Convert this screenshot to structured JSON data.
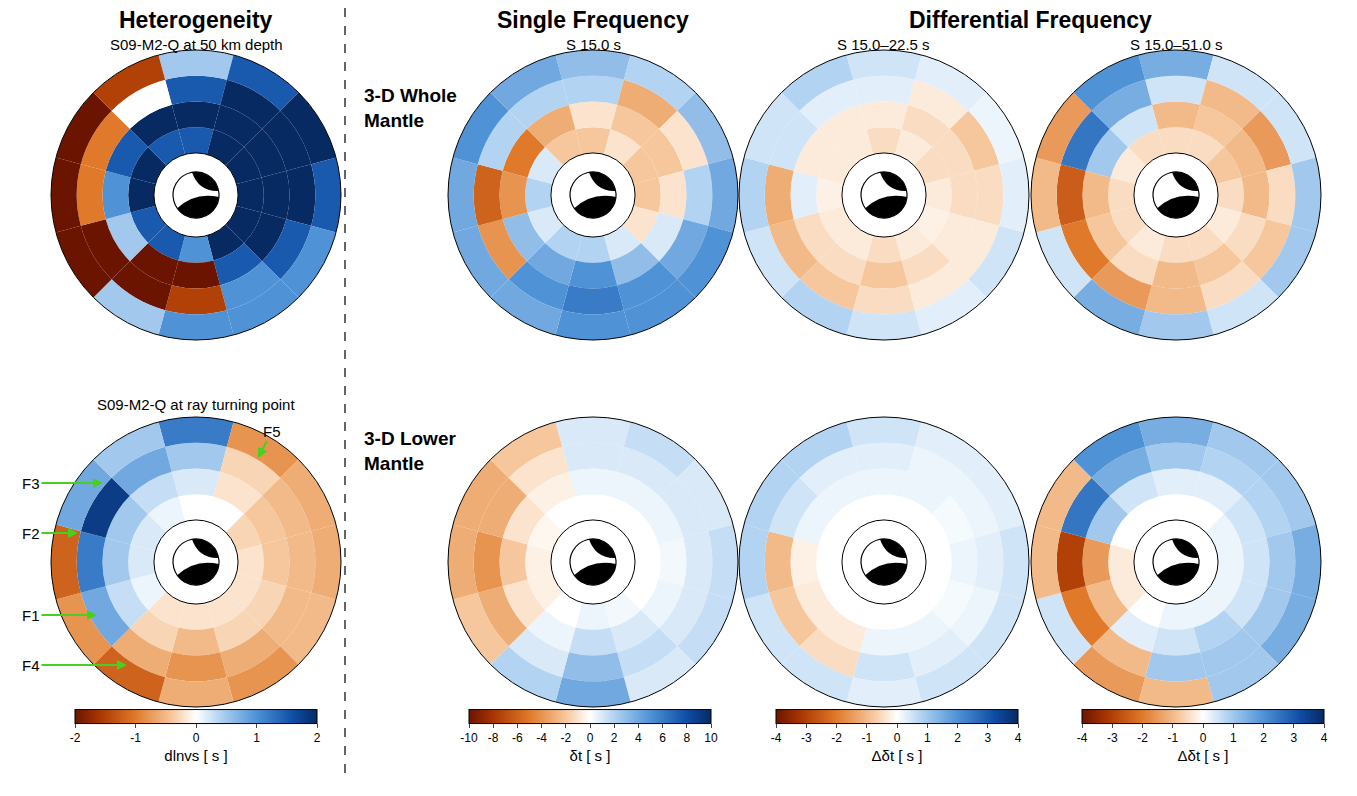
{
  "section_titles": [
    "Heterogeneity",
    "Single Frequency",
    "Differential Frequency"
  ],
  "row_labels": [
    "3-D Whole Mantle",
    "3-D Lower Mantle"
  ],
  "colorbars": [
    {
      "title": "dlnvs [ s ]",
      "range": [
        -2,
        2
      ],
      "ticks": [
        -2,
        -1,
        0,
        1,
        2
      ]
    },
    {
      "title": "δt [ s ]",
      "range": [
        -10,
        10
      ],
      "ticks": [
        -10,
        -8,
        -6,
        -4,
        -2,
        0,
        2,
        4,
        6,
        8,
        10
      ]
    },
    {
      "title": "Δδt [ s ]",
      "range": [
        -4,
        4
      ],
      "ticks": [
        -4,
        -3,
        -2,
        -1,
        0,
        1,
        2,
        3,
        4
      ]
    },
    {
      "title": "Δδt [ s ]",
      "range": [
        -4,
        4
      ],
      "ticks": [
        -4,
        -3,
        -2,
        -1,
        0,
        1,
        2,
        3,
        4
      ]
    }
  ],
  "chart_data": [
    {
      "type": "polar_heatmap",
      "title": "S09-M2-Q at 50 km depth",
      "colorbar": 0,
      "cells": [
        [
          1.5,
          2,
          1.5,
          0.5
        ],
        [
          2,
          2,
          2,
          1.5
        ],
        [
          2,
          2,
          2,
          2
        ],
        [
          2,
          2,
          2,
          1.5
        ],
        [
          2,
          2,
          1.5,
          1
        ],
        [
          2,
          1.5,
          1,
          1
        ],
        [
          1,
          -2,
          -1.5,
          1
        ],
        [
          1.5,
          -2,
          -2,
          0.5
        ],
        [
          1.5,
          0.5,
          -2,
          -2
        ],
        [
          2,
          1,
          -1,
          -2
        ],
        [
          2,
          1.5,
          -1,
          -2
        ],
        [
          1.5,
          2,
          0,
          -1.5
        ]
      ]
    },
    {
      "type": "polar_heatmap",
      "title": "S09-M2-Q at ray turning point",
      "colorbar": 0,
      "annotations": [
        "F3",
        "F2",
        "F1",
        "F4",
        "F5"
      ],
      "cells": [
        [
          0,
          0.2,
          0.5,
          1.2
        ],
        [
          0,
          -0.2,
          -0.3,
          -0.8
        ],
        [
          -0.3,
          -0.4,
          -0.5,
          -0.6
        ],
        [
          -0.2,
          -0.4,
          -0.5,
          -0.6
        ],
        [
          -0.2,
          -0.3,
          -0.5,
          -0.5
        ],
        [
          -0.2,
          -0.3,
          -0.6,
          -0.8
        ],
        [
          -0.2,
          -0.5,
          -0.8,
          -0.6
        ],
        [
          -0.2,
          -0.3,
          -0.6,
          -1.2
        ],
        [
          0.1,
          0.3,
          0.8,
          -0.8
        ],
        [
          0.2,
          0.5,
          1.2,
          -1.2
        ],
        [
          0.2,
          0.5,
          1.8,
          0.8
        ],
        [
          0.1,
          0.3,
          0.8,
          0.5
        ]
      ]
    },
    {
      "type": "polar_heatmap",
      "title": "S 15.0 s",
      "colorbar": 1,
      "cells": [
        [
          -2,
          -1,
          2,
          3
        ],
        [
          -1,
          -2,
          -3,
          2
        ],
        [
          -2,
          -2,
          -1,
          3
        ],
        [
          -2,
          -1,
          2,
          4
        ],
        [
          -1,
          1,
          4,
          5
        ],
        [
          1,
          3,
          5,
          5
        ],
        [
          2,
          5,
          6,
          5
        ],
        [
          2,
          4,
          5,
          4
        ],
        [
          1,
          3,
          -4,
          4
        ],
        [
          2,
          -4,
          -6,
          4
        ],
        [
          1,
          -5,
          2,
          5
        ],
        [
          -2,
          -3,
          2,
          4
        ]
      ]
    },
    {
      "type": "polar_heatmap",
      "title": "S 15.0–22.5 s",
      "colorbar": 2,
      "cells": [
        [
          -0.5,
          -0.3,
          0.3,
          0.5
        ],
        [
          -0.3,
          -0.5,
          -0.3,
          0.3
        ],
        [
          -0.5,
          -0.5,
          -0.8,
          0.2
        ],
        [
          -0.3,
          -0.5,
          -0.5,
          0.3
        ],
        [
          -0.2,
          -0.3,
          -0.3,
          0.5
        ],
        [
          -0.3,
          -0.5,
          -0.3,
          0.3
        ],
        [
          -0.5,
          -0.8,
          -0.5,
          0.5
        ],
        [
          -0.3,
          -0.5,
          -0.8,
          0.8
        ],
        [
          -0.3,
          -0.5,
          -1,
          0.5
        ],
        [
          -0.2,
          0.3,
          -1.2,
          0.8
        ],
        [
          -0.3,
          -0.3,
          0.5,
          0.5
        ],
        [
          -0.3,
          -0.3,
          0.3,
          0.8
        ]
      ]
    },
    {
      "type": "polar_heatmap",
      "title": "S 15.0–51.0 s",
      "colorbar": 3,
      "cells": [
        [
          -0.5,
          -1,
          0.5,
          1.5
        ],
        [
          -0.5,
          -0.8,
          -1,
          0.5
        ],
        [
          -0.8,
          -1,
          -1.5,
          0.5
        ],
        [
          -0.5,
          -1,
          -0.5,
          1
        ],
        [
          -0.3,
          -0.5,
          -0.8,
          1
        ],
        [
          -0.5,
          -0.8,
          -0.5,
          0.5
        ],
        [
          -0.5,
          -1,
          -1,
          1
        ],
        [
          -0.3,
          -0.5,
          -1.5,
          1.5
        ],
        [
          -0.5,
          -0.8,
          -2,
          0.5
        ],
        [
          -0.5,
          -1,
          -2.5,
          -1
        ],
        [
          -0.3,
          1,
          2.5,
          -1.5
        ],
        [
          -0.5,
          0.5,
          1.5,
          2
        ]
      ]
    },
    {
      "type": "polar_heatmap",
      "colorbar": 1,
      "cells": [
        [
          0,
          0.5,
          1,
          1
        ],
        [
          0,
          0.5,
          1,
          1.5
        ],
        [
          0,
          0.5,
          1,
          1
        ],
        [
          0,
          0.3,
          1,
          1.5
        ],
        [
          0,
          0.5,
          1,
          1.5
        ],
        [
          0.3,
          1,
          1.5,
          1
        ],
        [
          0.5,
          1.5,
          3,
          4
        ],
        [
          0,
          0.5,
          1,
          2
        ],
        [
          -0.5,
          -1,
          -3,
          -2
        ],
        [
          -0.5,
          -2,
          -4,
          -3
        ],
        [
          -0.3,
          -1,
          -3,
          -3
        ],
        [
          0,
          -0.5,
          -1,
          -2
        ]
      ]
    },
    {
      "type": "polar_heatmap",
      "colorbar": 2,
      "cells": [
        [
          0,
          0.2,
          0.3,
          0.5
        ],
        [
          0,
          0.2,
          0.2,
          0.3
        ],
        [
          0,
          0.1,
          0.2,
          0.3
        ],
        [
          0,
          0.2,
          0.3,
          0.5
        ],
        [
          0,
          0.1,
          0.2,
          0.5
        ],
        [
          0,
          0.2,
          0.3,
          0.5
        ],
        [
          0,
          0.2,
          0.5,
          0.3
        ],
        [
          0,
          -0.3,
          -0.5,
          0.5
        ],
        [
          0,
          -0.3,
          -0.8,
          0.5
        ],
        [
          0,
          -0.2,
          -1,
          0.8
        ],
        [
          0,
          0.2,
          0.5,
          0.8
        ],
        [
          0,
          0.2,
          0.3,
          0.8
        ]
      ]
    },
    {
      "type": "polar_heatmap",
      "colorbar": 3,
      "cells": [
        [
          0,
          0.3,
          1,
          1.5
        ],
        [
          0,
          0.3,
          0.8,
          1
        ],
        [
          0.2,
          0.5,
          0.8,
          1
        ],
        [
          0.2,
          0.5,
          1,
          1.5
        ],
        [
          0.2,
          0.5,
          1,
          1.5
        ],
        [
          0.2,
          0.8,
          1,
          1
        ],
        [
          0.2,
          0.5,
          1,
          -1
        ],
        [
          0,
          0.3,
          -1,
          -1.5
        ],
        [
          -0.3,
          -1,
          -2,
          0.5
        ],
        [
          -0.3,
          -1.5,
          -3,
          -1
        ],
        [
          0,
          1,
          2.5,
          -1
        ],
        [
          0,
          0.5,
          1.5,
          2
        ]
      ]
    }
  ]
}
